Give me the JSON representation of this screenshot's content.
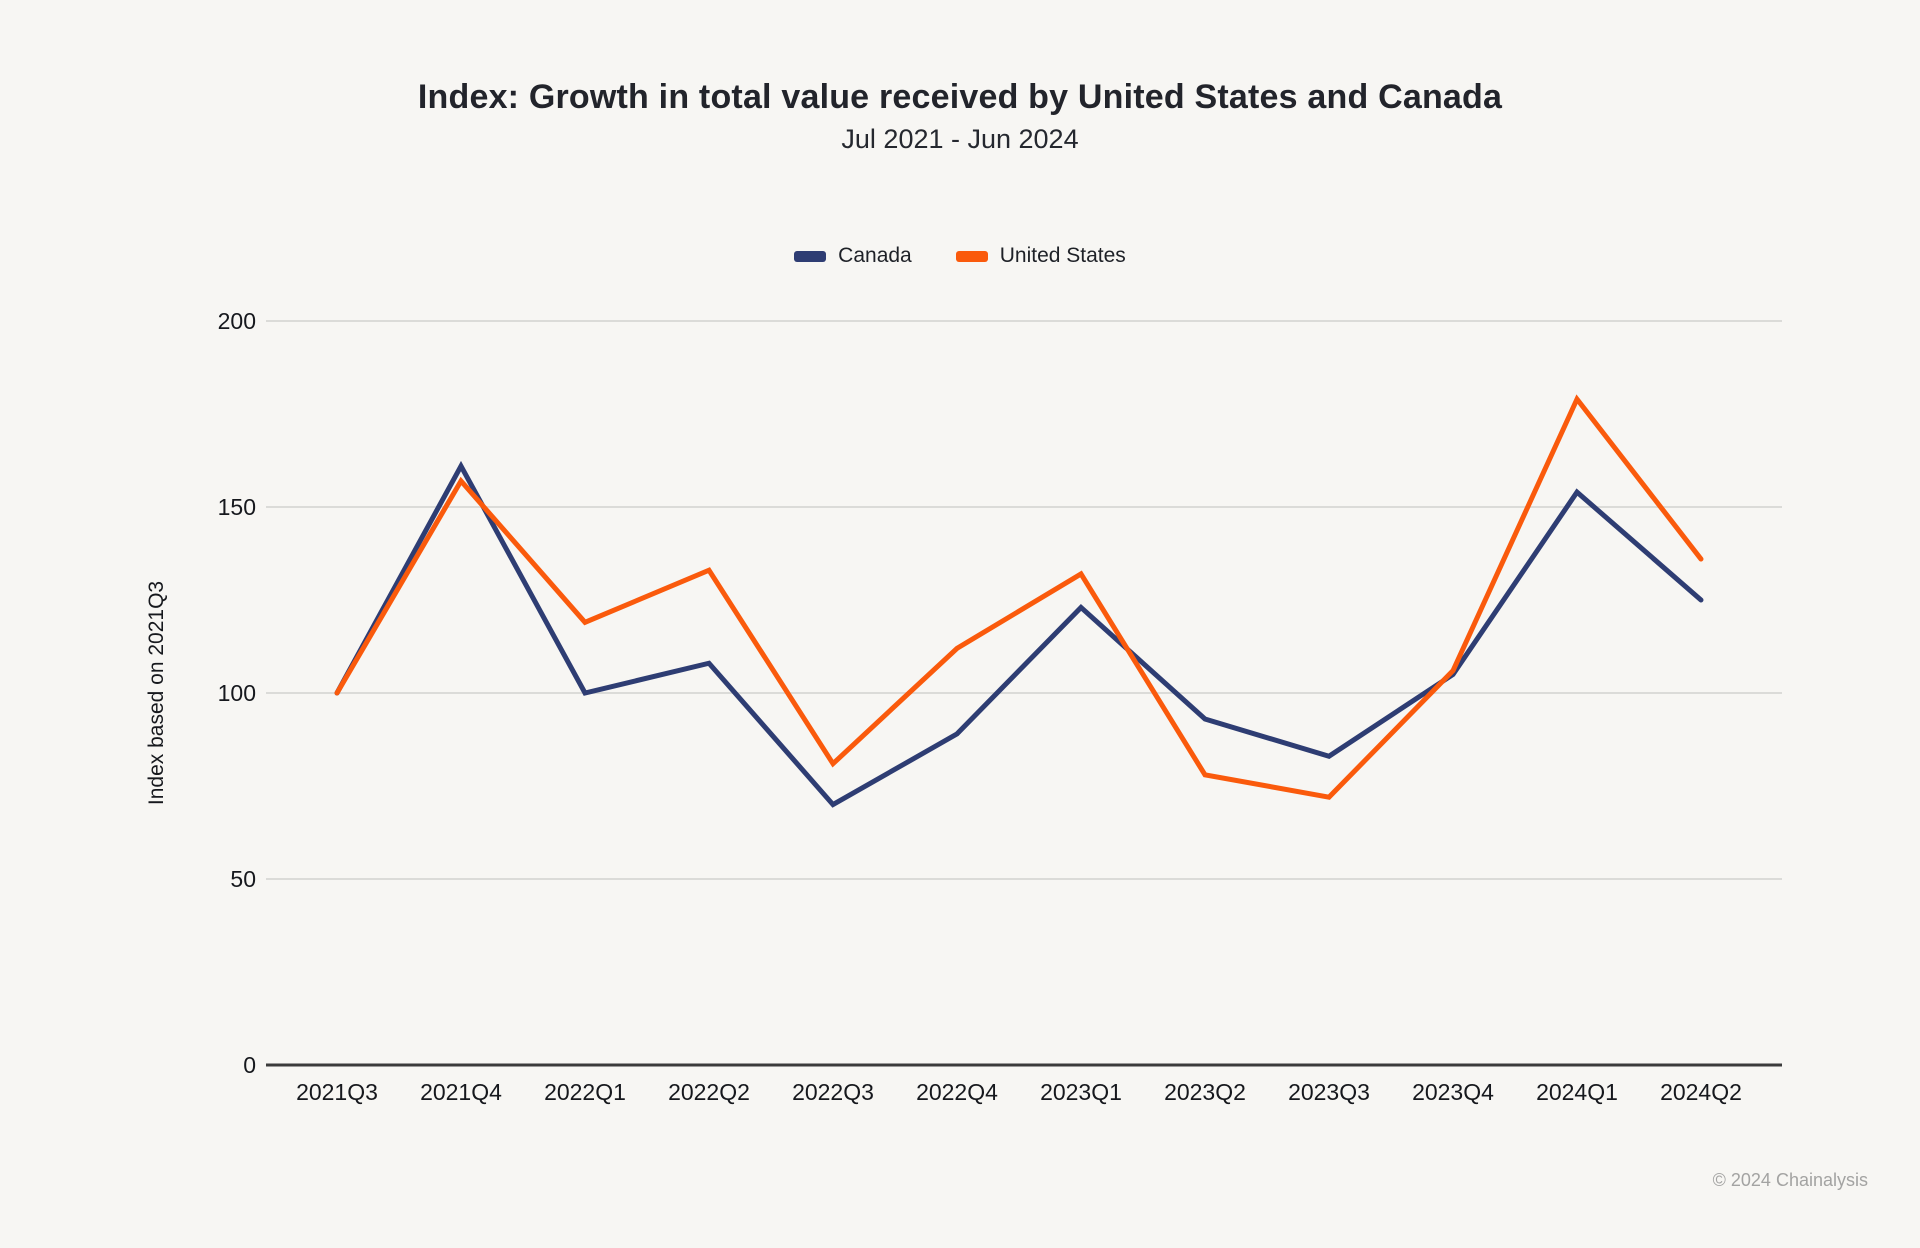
{
  "page": {
    "background": "#f7f6f3"
  },
  "chart_data": {
    "type": "line",
    "title": "Index: Growth in total value received by United States and Canada",
    "subtitle": "Jul 2021 - Jun 2024",
    "ylabel": "Index based on 2021Q3",
    "categories": [
      "2021Q3",
      "2021Q4",
      "2022Q1",
      "2022Q2",
      "2022Q3",
      "2022Q4",
      "2023Q1",
      "2023Q2",
      "2023Q3",
      "2023Q4",
      "2024Q1",
      "2024Q2"
    ],
    "series": [
      {
        "name": "Canada",
        "color": "#2e3d73",
        "values": [
          100,
          161,
          100,
          108,
          70,
          89,
          123,
          93,
          83,
          105,
          154,
          125
        ]
      },
      {
        "name": "United States",
        "color": "#fa5a0c",
        "values": [
          100,
          157,
          119,
          133,
          81,
          112,
          132,
          78,
          72,
          106,
          179,
          136
        ]
      }
    ],
    "ylim": [
      0,
      200
    ],
    "yticks": [
      0,
      50,
      100,
      150,
      200
    ],
    "grid": true,
    "legend_position": "top-center",
    "colors": {
      "gridline": "#dbdbd8",
      "axis_line": "#3b3b3b",
      "tick_label": "#16181d",
      "axis_title": "#16181d"
    }
  },
  "footer": {
    "copyright": "© 2024 Chainalysis"
  }
}
